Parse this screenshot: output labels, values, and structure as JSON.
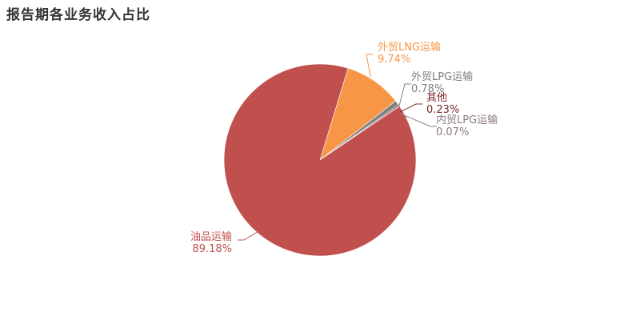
{
  "chart_data": {
    "type": "pie",
    "title": "报告期各业务收入占比",
    "slices": [
      {
        "label": "外贸LNG运输",
        "value": 9.74,
        "value_label": "9.74%",
        "color": "#f79646"
      },
      {
        "label": "外贸LPG运输",
        "value": 0.78,
        "value_label": "0.78%",
        "color": "#7f7f7f"
      },
      {
        "label": "其他",
        "value": 0.23,
        "value_label": "0.23%",
        "color": "#7a2628"
      },
      {
        "label": "内贸LPG运输",
        "value": 0.07,
        "value_label": "0.07%",
        "color": "#8c7a86"
      },
      {
        "label": "油品运输",
        "value": 89.18,
        "value_label": "89.18%",
        "color": "#c0504d"
      }
    ]
  }
}
